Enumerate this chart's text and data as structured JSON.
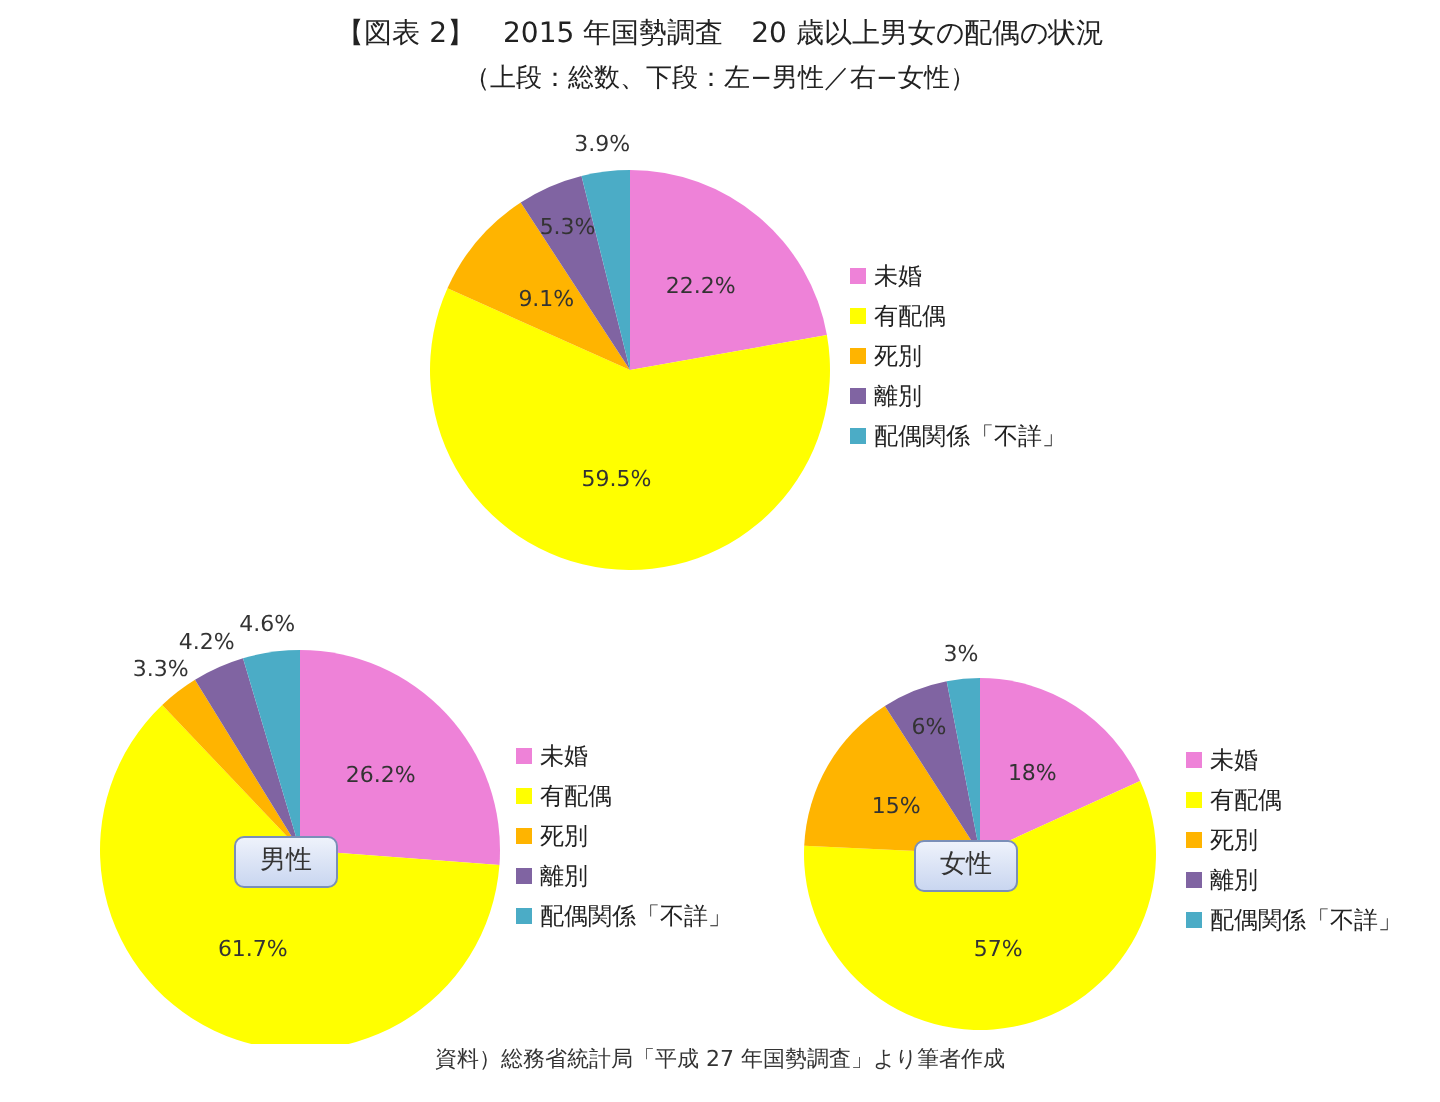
{
  "chart_data": [
    {
      "type": "pie",
      "title": "【図表 2】　2015 年国勢調査　20 歳以上男女の配偶の状況",
      "subtitle": "（上段：総数、下段：左−男性／右−女性）",
      "categories": [
        "未婚",
        "有配偶",
        "死別",
        "離別",
        "配偶関係「不詳」"
      ],
      "values": [
        22.2,
        59.5,
        9.1,
        5.3,
        3.9
      ],
      "value_labels": [
        "22.2%",
        "59.5%",
        "9.1%",
        "5.3%",
        "3.9%"
      ],
      "colors": [
        "#ee82d8",
        "#ffff00",
        "#ffb400",
        "#8064a2",
        "#4bacc6"
      ],
      "legend": "right"
    },
    {
      "type": "pie",
      "annotations": [
        "男性"
      ],
      "categories": [
        "未婚",
        "有配偶",
        "死別",
        "離別",
        "配偶関係「不詳」"
      ],
      "values": [
        26.2,
        61.7,
        3.3,
        4.2,
        4.6
      ],
      "value_labels": [
        "26.2%",
        "61.7%",
        "3.3%",
        "4.2%",
        "4.6%"
      ],
      "colors": [
        "#ee82d8",
        "#ffff00",
        "#ffb400",
        "#8064a2",
        "#4bacc6"
      ],
      "legend": "right"
    },
    {
      "type": "pie",
      "annotations": [
        "女性",
        "資料）総務省統計局「平成 27 年国勢調査」より筆者作成"
      ],
      "categories": [
        "未婚",
        "有配偶",
        "死別",
        "離別",
        "配偶関係「不詳」"
      ],
      "values": [
        18,
        57,
        15,
        6,
        3
      ],
      "value_labels": [
        "18%",
        "57%",
        "15%",
        "6%",
        "3%"
      ],
      "colors": [
        "#ee82d8",
        "#ffff00",
        "#ffb400",
        "#8064a2",
        "#4bacc6"
      ],
      "legend": "right"
    }
  ]
}
